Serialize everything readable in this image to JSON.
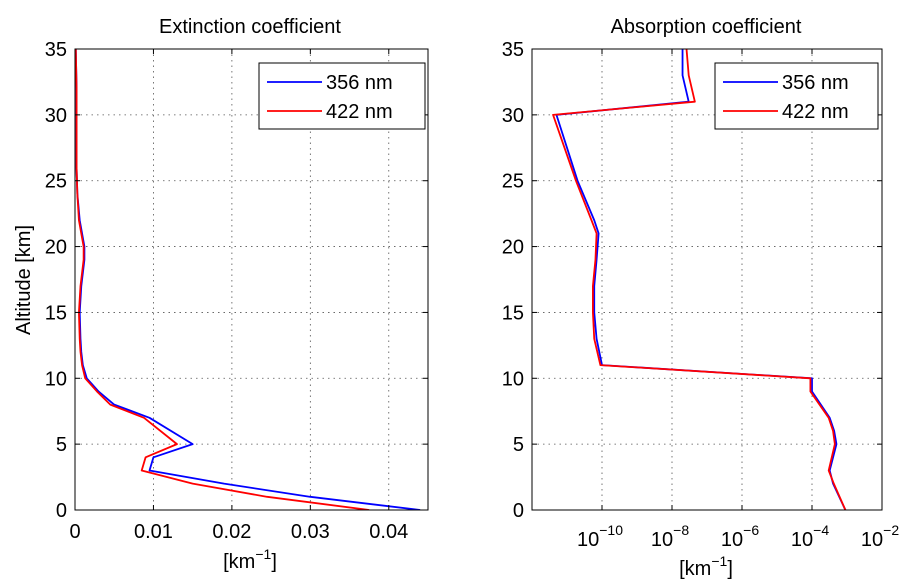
{
  "chart_data": [
    {
      "type": "line",
      "title": "Extinction coefficient",
      "xlabel": "[km",
      "xlabel_sup": "−1",
      "xlabel_end": "]",
      "ylabel": "Altitude [km]",
      "xlim": [
        0,
        0.045
      ],
      "ylim": [
        0,
        35
      ],
      "xscale": "linear",
      "xticks": [
        0,
        0.01,
        0.02,
        0.03,
        0.04
      ],
      "xtick_labels": [
        "0",
        "0.01",
        "0.02",
        "0.03",
        "0.04"
      ],
      "yticks": [
        0,
        5,
        10,
        15,
        20,
        25,
        30,
        35
      ],
      "ytick_labels": [
        "0",
        "5",
        "10",
        "15",
        "20",
        "25",
        "30",
        "35"
      ],
      "grid": true,
      "legend_position": "top-right",
      "series": [
        {
          "name": "356 nm",
          "color": "#0000ff",
          "x": [
            0.044,
            0.03,
            0.019,
            0.0095,
            0.01,
            0.015,
            0.0095,
            0.005,
            0.003,
            0.0015,
            0.001,
            0.0008,
            0.0007,
            0.0006,
            0.0008,
            0.0012,
            0.0012,
            0.0006,
            0.0003,
            0.0002,
            0.0002,
            0.0002,
            0.0002,
            0.0001
          ],
          "y": [
            0,
            1,
            2,
            3,
            4,
            5,
            7,
            8,
            9,
            10,
            11,
            12,
            13,
            15,
            17,
            19,
            20,
            22,
            24,
            26,
            28,
            30,
            32,
            35
          ]
        },
        {
          "name": "422 nm",
          "color": "#ff0000",
          "x": [
            0.0375,
            0.0245,
            0.015,
            0.0085,
            0.009,
            0.013,
            0.0088,
            0.0045,
            0.0028,
            0.0013,
            0.0009,
            0.0007,
            0.0006,
            0.0005,
            0.0007,
            0.0011,
            0.0011,
            0.0005,
            0.0003,
            0.0002,
            0.0002,
            0.0002,
            0.0002,
            0.0001
          ],
          "y": [
            0,
            1,
            2,
            3,
            4,
            5,
            7,
            8,
            9,
            10,
            11,
            12,
            13,
            15,
            17,
            19,
            20,
            22,
            24,
            26,
            28,
            30,
            32,
            35
          ]
        }
      ]
    },
    {
      "type": "line",
      "title": "Absorption coefficient",
      "xlabel": "[km",
      "xlabel_sup": "−1",
      "xlabel_end": "]",
      "ylabel": "",
      "xlim": [
        1e-12,
        0.01
      ],
      "ylim": [
        0,
        35
      ],
      "xscale": "log",
      "xticks": [
        1e-10,
        1e-08,
        1e-06,
        0.0001,
        0.01
      ],
      "xtick_labels": [
        "10",
        "10",
        "10",
        "10",
        "10"
      ],
      "xtick_exponents": [
        "−10",
        "−8",
        "−6",
        "−4",
        "−2"
      ],
      "yticks": [
        0,
        5,
        10,
        15,
        20,
        25,
        30,
        35
      ],
      "ytick_labels": [
        "0",
        "5",
        "10",
        "15",
        "20",
        "25",
        "30",
        "35"
      ],
      "grid": true,
      "legend_position": "top-right",
      "series": [
        {
          "name": "356 nm",
          "color": "#0000ff",
          "x": [
            0.0009,
            0.0004,
            0.00032,
            0.0005,
            0.00043,
            0.00032,
            0.0001,
            0.0001,
            1e-10,
            7e-11,
            6e-11,
            6e-11,
            7e-11,
            8e-11,
            6e-11,
            2e-11,
            5e-12,
            3e-08,
            2e-08,
            2e-08
          ],
          "y": [
            0,
            2,
            3,
            5,
            6,
            7,
            9,
            10,
            11,
            13,
            15,
            17,
            19,
            21,
            22,
            25,
            30,
            31,
            33,
            35
          ]
        },
        {
          "name": "422 nm",
          "color": "#ff0000",
          "x": [
            0.0009,
            0.00042,
            0.0003,
            0.00045,
            0.0004,
            0.0003,
            9e-05,
            9e-05,
            9e-11,
            6e-11,
            5.5e-11,
            5.5e-11,
            6.5e-11,
            7e-11,
            5e-11,
            1.8e-11,
            4e-12,
            4.5e-08,
            3e-08,
            2.6e-08
          ],
          "y": [
            0,
            2,
            3,
            5,
            6,
            7,
            9,
            10,
            11,
            13,
            15,
            17,
            19,
            21,
            22,
            25,
            30,
            31,
            33,
            35
          ]
        }
      ]
    }
  ]
}
